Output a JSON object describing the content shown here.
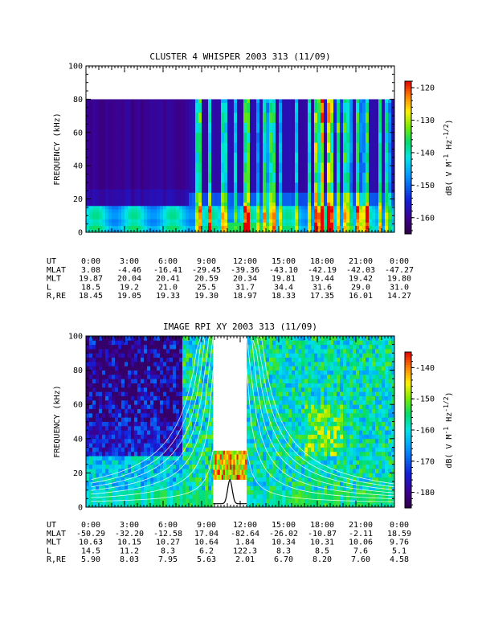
{
  "chart_data": [
    {
      "type": "heatmap",
      "title": "CLUSTER 4 WHISPER 2003 313 (11/09)",
      "ylabel": "FREQUENCY (kHz)",
      "ylim": [
        0,
        100
      ],
      "yticks": [
        "0",
        "20",
        "40",
        "60",
        "80",
        "100"
      ],
      "xlim_hours": [
        0,
        24
      ],
      "xticks": [
        "0:00",
        "3:00",
        "6:00",
        "9:00",
        "12:00",
        "15:00",
        "18:00",
        "21:00",
        "0:00"
      ],
      "data_ceiling_khz": 80,
      "colorbar": {
        "label_pre": "dB( V M",
        "label_sup1": "-1",
        "label_mid": " Hz",
        "label_sup2": "-1/2",
        "label_post": ")",
        "range": [
          -165,
          -118
        ],
        "ticks": [
          "-120",
          "-130",
          "-140",
          "-150",
          "-160"
        ],
        "tick_values": [
          -120,
          -130,
          -140,
          -150,
          -160
        ]
      },
      "ephemeris": [
        {
          "label": "UT",
          "values": [
            "0:00",
            "3:00",
            "6:00",
            "9:00",
            "12:00",
            "15:00",
            "18:00",
            "21:00",
            "0:00"
          ]
        },
        {
          "label": "MLAT",
          "values": [
            "3.08",
            "-4.46",
            "-16.41",
            "-29.45",
            "-39.36",
            "-43.10",
            "-42.19",
            "-42.03",
            "-47.27"
          ]
        },
        {
          "label": "MLT",
          "values": [
            "19.87",
            "20.04",
            "20.41",
            "20.59",
            "20.34",
            "19.81",
            "19.44",
            "19.42",
            "19.80"
          ]
        },
        {
          "label": "L",
          "values": [
            "18.5",
            "19.2",
            "21.0",
            "25.5",
            "31.7",
            "34.4",
            "31.6",
            "29.0",
            "31.0"
          ]
        },
        {
          "label": "R,RE",
          "values": [
            "18.45",
            "19.05",
            "19.33",
            "19.30",
            "18.97",
            "18.33",
            "17.35",
            "16.01",
            "14.27"
          ]
        }
      ]
    },
    {
      "type": "heatmap",
      "title": "IMAGE RPI XY 2003 313 (11/09)",
      "ylabel": "FREQUENCY (kHz)",
      "ylim": [
        0,
        100
      ],
      "yticks": [
        "0",
        "20",
        "40",
        "60",
        "80",
        "100"
      ],
      "xlim_hours": [
        0,
        24
      ],
      "xticks": [
        "0:00",
        "3:00",
        "6:00",
        "9:00",
        "12:00",
        "15:00",
        "18:00",
        "21:00",
        "0:00"
      ],
      "data_gap_hours": [
        9.9,
        12.5
      ],
      "colorbar": {
        "label_pre": "dB( V M",
        "label_sup1": "-1",
        "label_mid": " Hz",
        "label_sup2": "-1/2",
        "label_post": ")",
        "range": [
          -185,
          -135
        ],
        "ticks": [
          "-140",
          "-150",
          "-160",
          "-170",
          "-180"
        ],
        "tick_values": [
          -140,
          -150,
          -160,
          -170,
          -180
        ]
      },
      "ephemeris": [
        {
          "label": "UT",
          "values": [
            "0:00",
            "3:00",
            "6:00",
            "9:00",
            "12:00",
            "15:00",
            "18:00",
            "21:00",
            "0:00"
          ]
        },
        {
          "label": "MLAT",
          "values": [
            "-50.29",
            "-32.20",
            "-12.58",
            "17.04",
            "-82.64",
            "-26.02",
            "-10.87",
            "-2.11",
            "18.59"
          ]
        },
        {
          "label": "MLT",
          "values": [
            "10.63",
            "10.15",
            "10.27",
            "10.64",
            "1.84",
            "10.34",
            "10.31",
            "10.06",
            "9.76"
          ]
        },
        {
          "label": "L",
          "values": [
            "14.5",
            "11.2",
            "8.3",
            "6.2",
            "122.3",
            "8.3",
            "8.5",
            "7.6",
            "5.1"
          ]
        },
        {
          "label": "R,RE",
          "values": [
            "5.90",
            "8.03",
            "7.95",
            "5.63",
            "2.01",
            "6.70",
            "8.20",
            "7.60",
            "4.58"
          ]
        }
      ]
    }
  ]
}
